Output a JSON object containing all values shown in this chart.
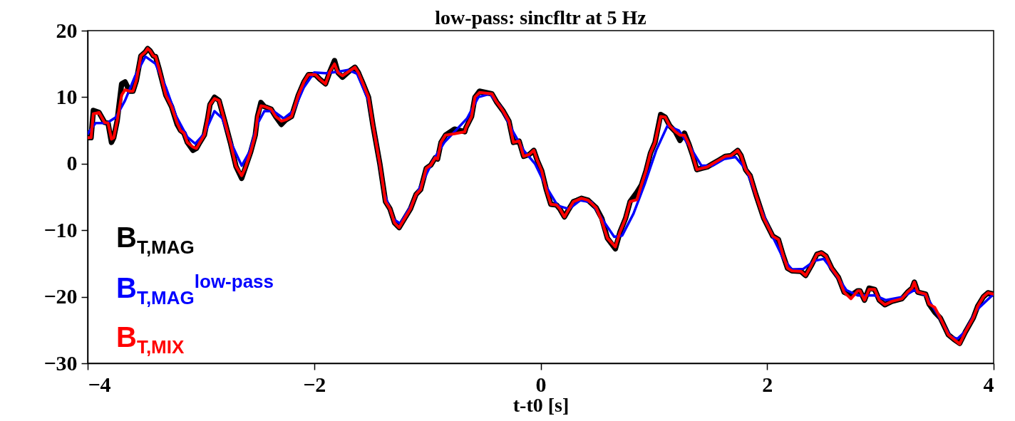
{
  "chart_data": {
    "type": "line",
    "title": "low-pass: sincfltr at 5 Hz",
    "xlabel": "t-t0 [s]",
    "xlim": [
      -4,
      4
    ],
    "xticks": [
      -4,
      -2,
      0,
      2,
      4
    ],
    "ylim": [
      -30,
      20
    ],
    "yticks": [
      -30,
      -20,
      -10,
      0,
      10,
      20
    ],
    "grid": false,
    "legend": "bottom left",
    "marker": "none",
    "line_style": "solid",
    "series": [
      {
        "name": "B$_{T,MAG}$",
        "color": "#000000",
        "x": [
          -4,
          -3.97,
          -3.95,
          -3.9,
          -3.85,
          -3.82,
          -3.79,
          -3.77,
          -3.74,
          -3.7,
          -3.67,
          -3.63,
          -3.6,
          -3.57,
          -3.53,
          -3.49,
          -3.47,
          -3.45,
          -3.42,
          -3.4,
          -3.37,
          -3.31,
          -3.26,
          -3.21,
          -3.18,
          -3.15,
          -3.12,
          -3.07,
          -3.04,
          -3.01,
          -2.97,
          -2.94,
          -2.92,
          -2.88,
          -2.84,
          -2.79,
          -2.74,
          -2.69,
          -2.64,
          -2.61,
          -2.56,
          -2.52,
          -2.5,
          -2.47,
          -2.44,
          -2.38,
          -2.34,
          -2.29,
          -2.25,
          -2.2,
          -2.14,
          -2.09,
          -2.05,
          -1.99,
          -1.95,
          -1.9,
          -1.86,
          -1.82,
          -1.79,
          -1.75,
          -1.69,
          -1.64,
          -1.61,
          -1.57,
          -1.52,
          -1.48,
          -1.42,
          -1.37,
          -1.33,
          -1.29,
          -1.25,
          -1.2,
          -1.15,
          -1.1,
          -1.06,
          -1.01,
          -0.97,
          -0.93,
          -0.91,
          -0.88,
          -0.84,
          -0.76,
          -0.67,
          -0.66,
          -0.61,
          -0.58,
          -0.54,
          -0.43,
          -0.39,
          -0.33,
          -0.28,
          -0.24,
          -0.19,
          -0.15,
          -0.1,
          -0.06,
          -0.03,
          0.01,
          0.05,
          0.09,
          0.14,
          0.17,
          0.21,
          0.24,
          0.29,
          0.32,
          0.36,
          0.42,
          0.49,
          0.54,
          0.59,
          0.66,
          0.7,
          0.75,
          0.79,
          0.85,
          0.89,
          0.93,
          0.97,
          1.01,
          1.06,
          1.1,
          1.14,
          1.19,
          1.23,
          1.27,
          1.31,
          1.34,
          1.38,
          1.42,
          1.47,
          1.52,
          1.57,
          1.63,
          1.68,
          1.74,
          1.77,
          1.81,
          1.85,
          1.9,
          1.97,
          2.05,
          2.1,
          2.14,
          2.18,
          2.22,
          2.3,
          2.34,
          2.39,
          2.44,
          2.48,
          2.52,
          2.57,
          2.63,
          2.68,
          2.74,
          2.8,
          2.82,
          2.86,
          2.9,
          2.95,
          2.99,
          3.04,
          3.1,
          3.19,
          3.24,
          3.28,
          3.3,
          3.33,
          3.4,
          3.43,
          3.48,
          3.53,
          3.6,
          3.65,
          3.7,
          3.75,
          3.82,
          3.86,
          3.91,
          3.95,
          4
        ],
        "values": [
          3.9,
          3.9,
          8,
          7.7,
          6.2,
          6.1,
          3.2,
          3.9,
          6.4,
          12,
          12.3,
          10.9,
          10.9,
          12.5,
          16.2,
          16.8,
          17.3,
          17,
          16.2,
          16.1,
          14.3,
          10.3,
          8.6,
          5.9,
          5,
          4.6,
          3.2,
          2,
          2.3,
          3.2,
          4.3,
          6.8,
          8.9,
          10,
          9.5,
          6.4,
          3.2,
          -0.4,
          -2.2,
          -0.7,
          1.8,
          4.3,
          7.1,
          9.2,
          8.6,
          8.2,
          7.1,
          5.9,
          6.6,
          7.1,
          10.3,
          12.3,
          13.4,
          13.4,
          12.7,
          12,
          13.9,
          15.5,
          13.7,
          13,
          13.9,
          14.5,
          13.7,
          12.1,
          10,
          5.7,
          0,
          -5.7,
          -6.8,
          -8.9,
          -9.6,
          -8.2,
          -6.8,
          -4.6,
          -3.9,
          -0.7,
          -0.2,
          0.9,
          0.7,
          3.2,
          4.3,
          5.2,
          4.8,
          5.4,
          7.1,
          10,
          10.9,
          10.5,
          9.3,
          7.9,
          6.4,
          3.2,
          3.4,
          1.1,
          1.4,
          2,
          0.5,
          -1.1,
          -3.9,
          -6.1,
          -6.2,
          -6.8,
          -8,
          -7.1,
          -5.7,
          -5.5,
          -5.2,
          -5.5,
          -6.6,
          -8.2,
          -11.2,
          -12.8,
          -10.3,
          -8.2,
          -5.7,
          -4.3,
          -3.2,
          -1.1,
          1.6,
          3.2,
          7.4,
          7,
          5.7,
          4.8,
          3.5,
          4.6,
          2.9,
          1.4,
          -0.9,
          -0.7,
          -0.5,
          0,
          0.5,
          1.1,
          1.2,
          2,
          1.2,
          -0.9,
          -1.8,
          -4.6,
          -8.2,
          -10.9,
          -11.4,
          -13.7,
          -15.7,
          -16.1,
          -16.2,
          -16.8,
          -15.3,
          -13.6,
          -13.4,
          -13.9,
          -15.7,
          -17.1,
          -19.3,
          -19.8,
          -19.1,
          -19.1,
          -20.5,
          -18.7,
          -18.9,
          -20.5,
          -21.2,
          -20.7,
          -20.3,
          -19.3,
          -18.7,
          -17.8,
          -19.3,
          -19.6,
          -21.1,
          -22.3,
          -23.2,
          -25.7,
          -26.4,
          -27,
          -25.3,
          -23.2,
          -21.4,
          -20,
          -19.4,
          -19.6
        ]
      },
      {
        "name": "B$_{T,MAG}$$^{low-pass}$",
        "color": "#0000ff",
        "x": [
          -4,
          -3.93,
          -3.83,
          -3.75,
          -3.67,
          -3.58,
          -3.49,
          -3.4,
          -3.31,
          -3.22,
          -3.12,
          -3.05,
          -2.97,
          -2.88,
          -2.81,
          -2.73,
          -2.64,
          -2.57,
          -2.5,
          -2.44,
          -2.36,
          -2.27,
          -2.18,
          -2.09,
          -2,
          -1.9,
          -1.8,
          -1.7,
          -1.62,
          -1.52,
          -1.45,
          -1.38,
          -1.3,
          -1.24,
          -1.15,
          -1.05,
          -0.95,
          -0.85,
          -0.75,
          -0.65,
          -0.55,
          -0.45,
          -0.35,
          -0.25,
          -0.15,
          -0.05,
          0.05,
          0.15,
          0.25,
          0.35,
          0.45,
          0.55,
          0.65,
          0.72,
          0.82,
          0.92,
          1.02,
          1.12,
          1.22,
          1.32,
          1.42,
          1.52,
          1.62,
          1.72,
          1.82,
          1.95,
          2.05,
          2.15,
          2.22,
          2.32,
          2.42,
          2.5,
          2.6,
          2.7,
          2.8,
          2.95,
          3.05,
          3.2,
          3.3,
          3.4,
          3.5,
          3.62,
          3.68,
          3.75,
          3.85,
          4
        ],
        "values": [
          4.5,
          6.1,
          6.1,
          7,
          9.5,
          13.2,
          16.1,
          15,
          11.5,
          7.2,
          4,
          3,
          4.5,
          7.9,
          6.8,
          3,
          -0.3,
          1.8,
          6,
          7.9,
          7.9,
          6.8,
          8,
          11.5,
          13.7,
          13.6,
          13.8,
          14.1,
          13.5,
          9.5,
          3,
          -4.5,
          -8.3,
          -9,
          -6.5,
          -3,
          0.5,
          3.2,
          5,
          6.8,
          10,
          10.5,
          8.5,
          5,
          2,
          0,
          -3.5,
          -6.3,
          -6.8,
          -5.5,
          -5.8,
          -8.5,
          -11,
          -10.8,
          -7.5,
          -3,
          2,
          5.7,
          5,
          2.5,
          -0.3,
          -0.3,
          0.7,
          1,
          -1,
          -7,
          -11,
          -14.5,
          -15.9,
          -15.8,
          -14.6,
          -14.3,
          -16.5,
          -19,
          -19.8,
          -19.8,
          -20.5,
          -20,
          -19,
          -19.8,
          -22.5,
          -26,
          -26.3,
          -25.2,
          -22,
          -19.6
        ]
      },
      {
        "name": "B$_{T,MIX}$",
        "color": "#ff0000",
        "x": [
          -4,
          -3.97,
          -3.95,
          -3.9,
          -3.85,
          -3.82,
          -3.79,
          -3.77,
          -3.74,
          -3.7,
          -3.67,
          -3.63,
          -3.6,
          -3.57,
          -3.53,
          -3.49,
          -3.47,
          -3.45,
          -3.42,
          -3.4,
          -3.37,
          -3.31,
          -3.26,
          -3.21,
          -3.18,
          -3.15,
          -3.12,
          -3.07,
          -3.04,
          -3.01,
          -2.97,
          -2.94,
          -2.92,
          -2.88,
          -2.84,
          -2.79,
          -2.74,
          -2.69,
          -2.64,
          -2.61,
          -2.56,
          -2.52,
          -2.5,
          -2.47,
          -2.44,
          -2.38,
          -2.34,
          -2.29,
          -2.25,
          -2.2,
          -2.14,
          -2.09,
          -2.05,
          -1.99,
          -1.95,
          -1.9,
          -1.86,
          -1.82,
          -1.79,
          -1.75,
          -1.69,
          -1.64,
          -1.61,
          -1.57,
          -1.52,
          -1.48,
          -1.42,
          -1.37,
          -1.33,
          -1.29,
          -1.25,
          -1.2,
          -1.15,
          -1.1,
          -1.06,
          -1.01,
          -0.97,
          -0.93,
          -0.91,
          -0.88,
          -0.84,
          -0.76,
          -0.67,
          -0.66,
          -0.61,
          -0.58,
          -0.54,
          -0.43,
          -0.39,
          -0.33,
          -0.28,
          -0.24,
          -0.19,
          -0.15,
          -0.1,
          -0.06,
          -0.03,
          0.01,
          0.05,
          0.09,
          0.14,
          0.17,
          0.21,
          0.24,
          0.29,
          0.32,
          0.36,
          0.42,
          0.49,
          0.54,
          0.59,
          0.66,
          0.7,
          0.75,
          0.79,
          0.85,
          0.89,
          0.93,
          0.97,
          1.01,
          1.06,
          1.1,
          1.14,
          1.19,
          1.23,
          1.27,
          1.31,
          1.34,
          1.38,
          1.42,
          1.47,
          1.52,
          1.57,
          1.63,
          1.68,
          1.74,
          1.77,
          1.81,
          1.85,
          1.9,
          1.97,
          2.05,
          2.1,
          2.14,
          2.18,
          2.22,
          2.3,
          2.34,
          2.39,
          2.44,
          2.48,
          2.52,
          2.57,
          2.63,
          2.68,
          2.74,
          2.8,
          2.82,
          2.86,
          2.9,
          2.95,
          2.99,
          3.04,
          3.1,
          3.19,
          3.24,
          3.28,
          3.3,
          3.33,
          3.4,
          3.43,
          3.48,
          3.53,
          3.6,
          3.65,
          3.7,
          3.75,
          3.82,
          3.86,
          3.91,
          3.95,
          4
        ],
        "values": [
          3.9,
          3.9,
          7.5,
          7.7,
          6.2,
          6.1,
          3.7,
          3.9,
          6.4,
          10.3,
          11.1,
          10.9,
          10.9,
          12.5,
          16.2,
          16.8,
          17.3,
          17,
          16.2,
          16.1,
          14.3,
          10.3,
          8.6,
          6.1,
          5,
          4.6,
          3.2,
          2.5,
          2.3,
          3.2,
          4.3,
          6.8,
          8.9,
          9.8,
          9.5,
          6.4,
          3.2,
          -0.4,
          -1.8,
          -0.7,
          1.8,
          4.3,
          7.1,
          8.7,
          8.6,
          8.2,
          7.1,
          6.4,
          6.6,
          7.1,
          10.3,
          12.3,
          13.4,
          13.4,
          12.7,
          12,
          13.9,
          15,
          13.7,
          13.2,
          13.9,
          14.5,
          13.7,
          12.1,
          10,
          5.7,
          0,
          -5.7,
          -6.8,
          -8.9,
          -9.6,
          -8.2,
          -6.8,
          -4.6,
          -3.9,
          -0.7,
          -0.2,
          0.9,
          0.7,
          3.2,
          4.3,
          4.5,
          4.8,
          5.4,
          7.1,
          10,
          10.7,
          10.5,
          9.3,
          7.9,
          6.4,
          3.2,
          3.4,
          1.1,
          1.4,
          2,
          0.5,
          -1.1,
          -3.9,
          -6.1,
          -6.2,
          -6.8,
          -8,
          -7.1,
          -5.7,
          -5.5,
          -5.2,
          -5.5,
          -6.6,
          -8.6,
          -11.2,
          -12.5,
          -10.3,
          -8.2,
          -5.7,
          -5.4,
          -3.2,
          -1.1,
          1.6,
          3.2,
          7.1,
          7,
          5.7,
          4.8,
          4.3,
          4.3,
          2.9,
          1.4,
          -0.9,
          -0.7,
          -0.5,
          0,
          0.5,
          1.1,
          1.2,
          2,
          1.2,
          -0.9,
          -1.8,
          -4.6,
          -8.2,
          -10.9,
          -11.4,
          -13.7,
          -15.7,
          -16.1,
          -16.2,
          -16.8,
          -15.3,
          -13.6,
          -13.4,
          -13.9,
          -15.7,
          -17.1,
          -19.3,
          -20.3,
          -19.1,
          -19.1,
          -20.5,
          -18.9,
          -18.9,
          -20.5,
          -21.2,
          -20.7,
          -20.3,
          -19.3,
          -18.7,
          -17.8,
          -19.3,
          -19.6,
          -21.1,
          -21.6,
          -23.2,
          -25.7,
          -26.4,
          -27.1,
          -25.3,
          -23.2,
          -21.4,
          -20,
          -19.4,
          -19.6
        ]
      }
    ]
  }
}
